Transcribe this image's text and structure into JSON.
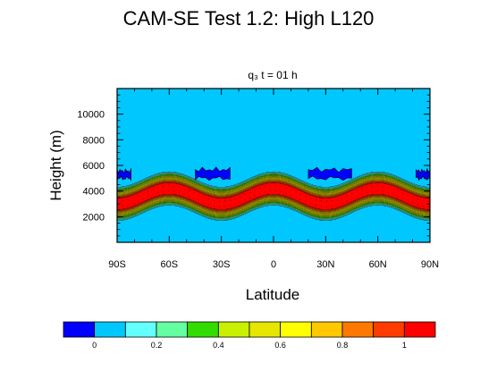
{
  "chart_data": {
    "type": "heatmap",
    "title": "CAM-SE Test 1.2: High L120",
    "subtitle": "q₃ t = 01 h",
    "xlabel": "Latitude",
    "ylabel": "Height (m)",
    "xlim": [
      -90,
      90
    ],
    "ylim": [
      0,
      12000
    ],
    "x_ticks": [
      {
        "value": -90,
        "label": "90S"
      },
      {
        "value": -60,
        "label": "60S"
      },
      {
        "value": -30,
        "label": "30S"
      },
      {
        "value": 0,
        "label": "0"
      },
      {
        "value": 30,
        "label": "30N"
      },
      {
        "value": 60,
        "label": "60N"
      },
      {
        "value": 90,
        "label": "90N"
      }
    ],
    "y_ticks": [
      {
        "value": 2000,
        "label": "2000"
      },
      {
        "value": 4000,
        "label": "4000"
      },
      {
        "value": 6000,
        "label": "6000"
      },
      {
        "value": 8000,
        "label": "8000"
      },
      {
        "value": 10000,
        "label": "10000"
      }
    ],
    "background_value": 0,
    "band": {
      "description_values": "tracer band following a sinusoid in latitude",
      "center_height_m": 3600,
      "amplitude_m": 600,
      "period_deg": 60,
      "peak_latitudes": [
        -60,
        0,
        60
      ],
      "max_value_thickness_m": 900,
      "total_thickness_m": 2600,
      "core_value": 1.0
    },
    "patches": [
      {
        "lat_min": -90,
        "lat_max": -82,
        "h_min": 5000,
        "h_max": 5600,
        "value": -0.05
      },
      {
        "lat_min": -45,
        "lat_max": -25,
        "h_min": 5000,
        "h_max": 5700,
        "value": -0.05
      },
      {
        "lat_min": 20,
        "lat_max": 45,
        "h_min": 5000,
        "h_max": 5700,
        "value": -0.05
      },
      {
        "lat_min": 82,
        "lat_max": 90,
        "h_min": 5000,
        "h_max": 5600,
        "value": -0.05
      }
    ],
    "colorbar": {
      "colors": [
        "#0000ff",
        "#00c8ff",
        "#64ffff",
        "#64ffa0",
        "#32dc00",
        "#c8f000",
        "#e6e600",
        "#ffff00",
        "#ffc800",
        "#ff7800",
        "#ff3c00",
        "#ff0000"
      ],
      "tick_labels": [
        {
          "index": 1,
          "label": "0"
        },
        {
          "index": 3,
          "label": "0.2"
        },
        {
          "index": 5,
          "label": "0.4"
        },
        {
          "index": 7,
          "label": "0.6"
        },
        {
          "index": 9,
          "label": "0.8"
        },
        {
          "index": 11,
          "label": "1"
        }
      ]
    }
  }
}
